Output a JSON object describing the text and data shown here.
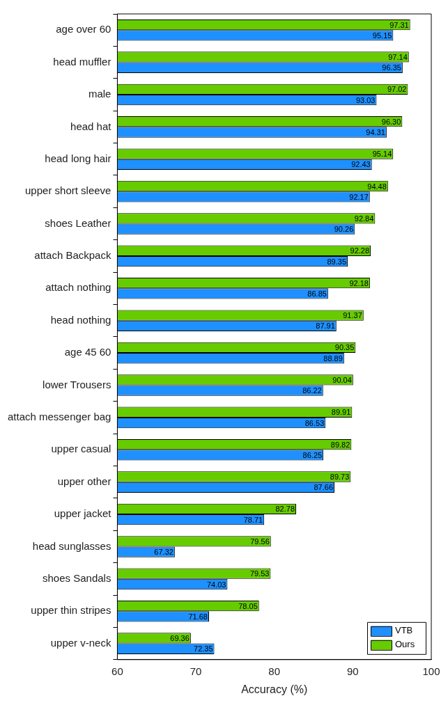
{
  "chart_data": {
    "type": "bar",
    "orientation": "horizontal",
    "xlabel": "Accuracy (%)",
    "categories": [
      "age over 60",
      "head muffler",
      "male",
      "head hat",
      "head long hair",
      "upper short sleeve",
      "shoes Leather",
      "attach Backpack",
      "attach nothing",
      "head nothing",
      "age 45 60",
      "lower Trousers",
      "attach messenger bag",
      "upper casual",
      "upper other",
      "upper jacket",
      "head sunglasses",
      "shoes Sandals",
      "upper thin stripes",
      "upper v-neck"
    ],
    "series": [
      {
        "name": "VTB",
        "color": "#1e90ff",
        "values": [
          95.15,
          96.35,
          93.03,
          94.31,
          92.43,
          92.17,
          90.26,
          89.35,
          86.85,
          87.91,
          88.89,
          86.22,
          86.53,
          86.25,
          87.66,
          78.71,
          67.32,
          74.03,
          71.68,
          72.35
        ]
      },
      {
        "name": "Ours",
        "color": "#66cc00",
        "values": [
          97.31,
          97.14,
          97.02,
          96.3,
          95.14,
          94.48,
          92.84,
          92.28,
          92.18,
          91.37,
          90.35,
          90.04,
          89.91,
          89.82,
          89.73,
          82.78,
          79.56,
          79.53,
          78.05,
          69.36
        ],
        "value_labels": [
          "97.31",
          "97.14",
          "97.02",
          "96.30",
          "95.14",
          "94.48",
          "92.84",
          "92.28",
          "92.18",
          "91.37",
          "90.35",
          "90.04",
          "89.91",
          "89.82",
          "89.73",
          "82.78",
          "79.56",
          "79.53",
          "78.05",
          "69.36"
        ]
      }
    ],
    "xlim": [
      60,
      100
    ],
    "xticks": [
      60,
      70,
      80,
      90,
      100
    ],
    "grid": false,
    "legend": "bottom right",
    "data_labels": true
  }
}
